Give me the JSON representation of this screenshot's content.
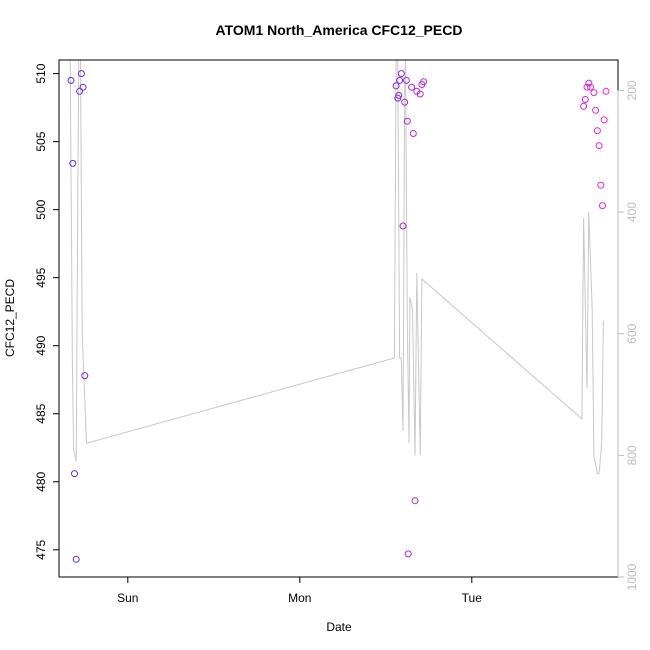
{
  "chart_data": {
    "type": "scatter",
    "title": "ATOM1 North_America CFC12_PECD",
    "xlabel": "Date",
    "ylabel": "CFC12_PECD",
    "xlim": [
      -1.4,
      1.85
    ],
    "x_ticks": [
      {
        "value": -1,
        "label": "Sun"
      },
      {
        "value": 0,
        "label": "Mon"
      },
      {
        "value": 1,
        "label": "Tue"
      }
    ],
    "ylim": [
      473,
      511
    ],
    "y_ticks": [
      475,
      480,
      485,
      490,
      495,
      500,
      505,
      510
    ],
    "y2lim": [
      1000,
      150
    ],
    "y2_ticks": [
      200,
      400,
      600,
      800,
      1000
    ],
    "colors": {
      "axis": "#000000",
      "secondary_axis": "#bdbdbd",
      "line": "#c8c8c8",
      "point_start": "#5a2cf0",
      "point_end": "#ff22cc"
    },
    "points": [
      {
        "x": -1.33,
        "y": 509.5
      },
      {
        "x": -1.32,
        "y": 503.4
      },
      {
        "x": -1.31,
        "y": 480.6
      },
      {
        "x": -1.3,
        "y": 474.3
      },
      {
        "x": -1.28,
        "y": 508.7
      },
      {
        "x": -1.27,
        "y": 510.0
      },
      {
        "x": -1.26,
        "y": 509.0
      },
      {
        "x": -1.25,
        "y": 487.8
      },
      {
        "x": 0.56,
        "y": 509.1
      },
      {
        "x": 0.57,
        "y": 508.2
      },
      {
        "x": 0.575,
        "y": 508.4
      },
      {
        "x": 0.58,
        "y": 509.5
      },
      {
        "x": 0.59,
        "y": 510.0
      },
      {
        "x": 0.6,
        "y": 498.8
      },
      {
        "x": 0.61,
        "y": 507.9
      },
      {
        "x": 0.62,
        "y": 509.5
      },
      {
        "x": 0.625,
        "y": 506.5
      },
      {
        "x": 0.63,
        "y": 474.7
      },
      {
        "x": 0.65,
        "y": 509.0
      },
      {
        "x": 0.66,
        "y": 505.6
      },
      {
        "x": 0.67,
        "y": 478.6
      },
      {
        "x": 0.68,
        "y": 508.7
      },
      {
        "x": 0.7,
        "y": 508.5
      },
      {
        "x": 0.71,
        "y": 509.2
      },
      {
        "x": 0.72,
        "y": 509.4
      },
      {
        "x": 1.65,
        "y": 507.6
      },
      {
        "x": 1.66,
        "y": 508.1
      },
      {
        "x": 1.67,
        "y": 509.0
      },
      {
        "x": 1.68,
        "y": 509.3
      },
      {
        "x": 1.69,
        "y": 509.0
      },
      {
        "x": 1.71,
        "y": 508.6
      },
      {
        "x": 1.72,
        "y": 507.3
      },
      {
        "x": 1.73,
        "y": 505.8
      },
      {
        "x": 1.74,
        "y": 504.7
      },
      {
        "x": 1.75,
        "y": 501.8
      },
      {
        "x": 1.76,
        "y": 500.3
      },
      {
        "x": 1.77,
        "y": 506.6
      },
      {
        "x": 1.78,
        "y": 508.7
      }
    ],
    "line": [
      {
        "x": -1.335,
        "y": 150
      },
      {
        "x": -1.328,
        "y": 420
      },
      {
        "x": -1.322,
        "y": 650
      },
      {
        "x": -1.315,
        "y": 790
      },
      {
        "x": -1.3,
        "y": 810
      },
      {
        "x": -1.29,
        "y": 350
      },
      {
        "x": -1.285,
        "y": 150
      },
      {
        "x": -1.275,
        "y": 150
      },
      {
        "x": -1.265,
        "y": 600
      },
      {
        "x": -1.24,
        "y": 780
      },
      {
        "x": 0.55,
        "y": 640
      },
      {
        "x": 0.56,
        "y": 150
      },
      {
        "x": 0.57,
        "y": 150
      },
      {
        "x": 0.58,
        "y": 640
      },
      {
        "x": 0.59,
        "y": 640
      },
      {
        "x": 0.6,
        "y": 760
      },
      {
        "x": 0.61,
        "y": 200
      },
      {
        "x": 0.615,
        "y": 150
      },
      {
        "x": 0.625,
        "y": 580
      },
      {
        "x": 0.635,
        "y": 780
      },
      {
        "x": 0.64,
        "y": 540
      },
      {
        "x": 0.655,
        "y": 560
      },
      {
        "x": 0.67,
        "y": 800
      },
      {
        "x": 0.68,
        "y": 500
      },
      {
        "x": 0.7,
        "y": 800
      },
      {
        "x": 0.71,
        "y": 510
      },
      {
        "x": 1.64,
        "y": 740
      },
      {
        "x": 1.65,
        "y": 410
      },
      {
        "x": 1.67,
        "y": 690
      },
      {
        "x": 1.68,
        "y": 400
      },
      {
        "x": 1.7,
        "y": 560
      },
      {
        "x": 1.71,
        "y": 800
      },
      {
        "x": 1.73,
        "y": 830
      },
      {
        "x": 1.74,
        "y": 830
      },
      {
        "x": 1.755,
        "y": 780
      },
      {
        "x": 1.765,
        "y": 580
      }
    ]
  }
}
